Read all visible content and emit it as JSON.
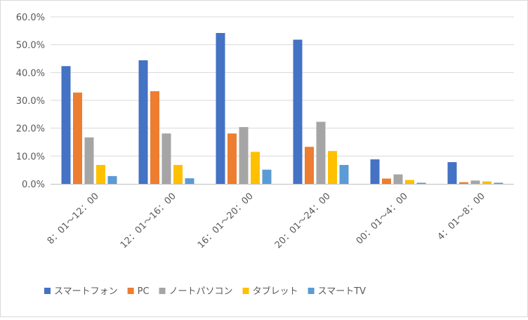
{
  "chart_data": {
    "type": "bar",
    "title": "",
    "xlabel": "",
    "ylabel": "",
    "ylim": [
      0,
      60
    ],
    "ytick_step": 10,
    "ytick_labels": [
      "0.0%",
      "10.0%",
      "20.0%",
      "30.0%",
      "40.0%",
      "50.0%",
      "60.0%"
    ],
    "grid": true,
    "legend_position": "bottom",
    "categories": [
      "8：01～12：00",
      "12：01～16：00",
      "16：01～20：00",
      "20：01～24：00",
      "00：01～4：00",
      "4：01～8：00"
    ],
    "series": [
      {
        "name": "スマートフォン",
        "color": "#4472C4",
        "values": [
          42.3,
          44.4,
          54.2,
          51.8,
          8.8,
          7.8
        ]
      },
      {
        "name": "PC",
        "color": "#ED7D31",
        "values": [
          32.8,
          33.3,
          18.1,
          13.3,
          1.9,
          0.6
        ]
      },
      {
        "name": "ノートパソコン",
        "color": "#A5A5A5",
        "values": [
          16.7,
          18.1,
          20.4,
          22.3,
          3.4,
          1.2
        ]
      },
      {
        "name": "タブレット",
        "color": "#FFC000",
        "values": [
          6.8,
          6.8,
          11.5,
          11.8,
          1.4,
          0.9
        ]
      },
      {
        "name": "スマートTV",
        "color": "#5B9BD5",
        "values": [
          2.8,
          2.0,
          5.1,
          6.8,
          0.4,
          0.4
        ]
      }
    ]
  }
}
